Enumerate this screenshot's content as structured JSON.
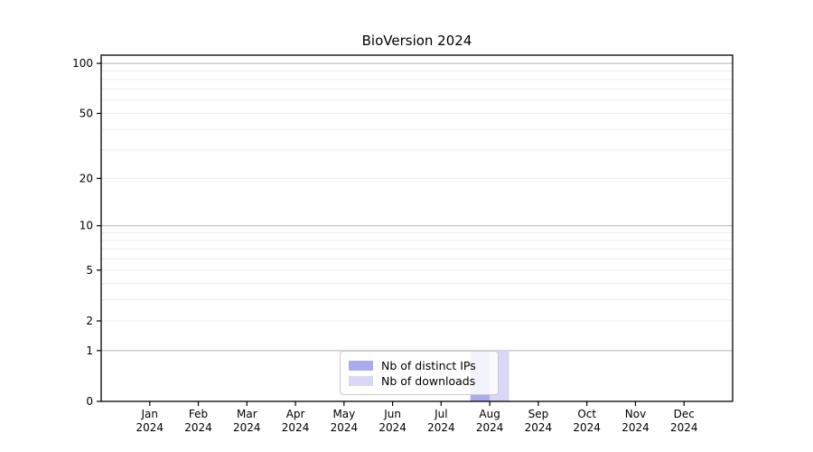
{
  "chart_data": {
    "type": "bar",
    "title": "BioVersion 2024",
    "categories": [
      "Jan 2024",
      "Feb 2024",
      "Mar 2024",
      "Apr 2024",
      "May 2024",
      "Jun 2024",
      "Jul 2024",
      "Aug 2024",
      "Sep 2024",
      "Oct 2024",
      "Nov 2024",
      "Dec 2024"
    ],
    "series": [
      {
        "name": "Nb of distinct IPs",
        "color": "#aaaaee",
        "values": [
          0,
          0,
          0,
          0,
          0,
          0,
          0,
          1,
          0,
          0,
          0,
          0
        ]
      },
      {
        "name": "Nb of downloads",
        "color": "#d8d8f6",
        "values": [
          0,
          0,
          0,
          0,
          0,
          0,
          0,
          1,
          0,
          0,
          0,
          0
        ]
      }
    ],
    "xlabel": "",
    "ylabel": "",
    "yscale": "log1p",
    "ylim": [
      0,
      112
    ],
    "ytick_labels": [
      100,
      50,
      20,
      10,
      5,
      2,
      1,
      0
    ],
    "grid": true,
    "major_grid_values": [
      1,
      10,
      100
    ],
    "minor_grid_values": [
      2,
      3,
      4,
      5,
      6,
      7,
      8,
      9,
      20,
      30,
      40,
      50,
      60,
      70,
      80,
      90
    ],
    "legend_position": "lower center"
  },
  "colors": {
    "axis": "#000000",
    "tick_text": "#000000",
    "major_grid": "#b2b2b2",
    "minor_grid": "#ececec",
    "background": "#ffffff"
  }
}
